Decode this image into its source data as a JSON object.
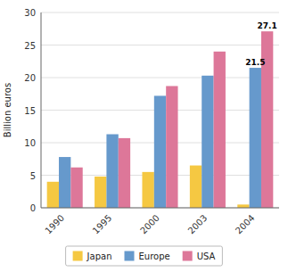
{
  "chart_data": {
    "type": "bar",
    "categories": [
      "1990",
      "1995",
      "2000",
      "2003",
      "2004"
    ],
    "series": [
      {
        "name": "Japan",
        "color": "#F5C842",
        "values": [
          4.0,
          4.8,
          5.5,
          6.5,
          0.5
        ]
      },
      {
        "name": "Europe",
        "color": "#6699CC",
        "values": [
          7.8,
          11.3,
          17.2,
          20.3,
          21.5
        ]
      },
      {
        "name": "USA",
        "color": "#DD7799",
        "values": [
          6.2,
          10.7,
          18.7,
          24.0,
          27.1
        ]
      }
    ],
    "ylabel": "Billion euros",
    "ylim": [
      0,
      30
    ],
    "yticks": [
      0,
      5,
      10,
      15,
      20,
      25,
      30
    ],
    "annotations": [
      {
        "text": "27.1",
        "series": "USA",
        "category": "2004"
      },
      {
        "text": "21.5",
        "series": "Europe",
        "category": "2004"
      }
    ],
    "grid": true,
    "legend": "bottom"
  }
}
